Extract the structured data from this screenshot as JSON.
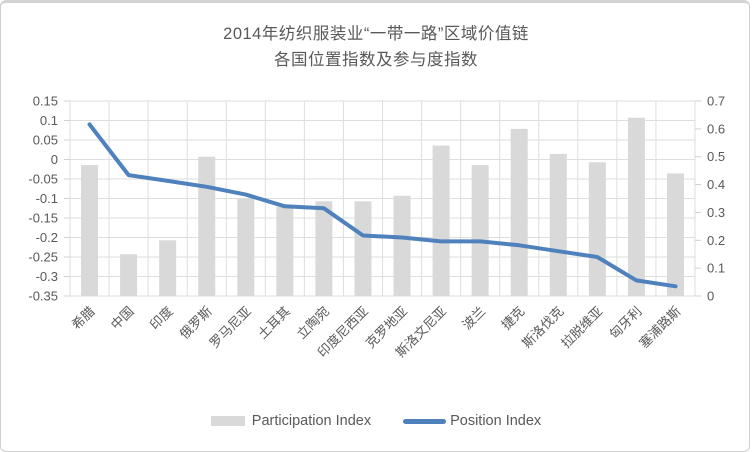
{
  "chart_data": {
    "type": "bar",
    "combo": "bar-and-line, dual axis",
    "title": "2014年纺织服装业“一带一路”区域价值链 各国位置指数及参与度指数",
    "title_line1": "2014年纺织服装业“一带一路”区域价值链",
    "title_line2": "各国位置指数及参与度指数",
    "categories": [
      "希腊",
      "中国",
      "印度",
      "俄罗斯",
      "罗马尼亚",
      "土耳其",
      "立陶宛",
      "印度尼西亚",
      "克罗地亚",
      "斯洛文尼亚",
      "波兰",
      "捷克",
      "斯洛伐克",
      "拉脱维亚",
      "匈牙利",
      "塞浦路斯"
    ],
    "series": [
      {
        "name": "Participation Index",
        "type": "bar",
        "axis": "right",
        "color": "#d9d9d9",
        "values": [
          0.47,
          0.15,
          0.2,
          0.5,
          0.35,
          0.32,
          0.34,
          0.34,
          0.36,
          0.54,
          0.47,
          0.6,
          0.51,
          0.48,
          0.64,
          0.44
        ]
      },
      {
        "name": "Position Index",
        "type": "line",
        "axis": "left",
        "color": "#4f81bd",
        "values": [
          0.09,
          -0.04,
          -0.055,
          -0.07,
          -0.09,
          -0.12,
          -0.125,
          -0.195,
          -0.2,
          -0.21,
          -0.21,
          -0.22,
          -0.235,
          -0.25,
          -0.31,
          -0.325
        ]
      }
    ],
    "left_axis": {
      "min": -0.35,
      "max": 0.15,
      "step": 0.05,
      "tick_labels": [
        "0.15",
        "0.1",
        "0.05",
        "0",
        "-0.05",
        "-0.1",
        "-0.15",
        "-0.2",
        "-0.25",
        "-0.3",
        "-0.35"
      ]
    },
    "right_axis": {
      "min": 0,
      "max": 0.7,
      "step": 0.1,
      "tick_labels": [
        "0.7",
        "0.6",
        "0.5",
        "0.4",
        "0.3",
        "0.2",
        "0.1",
        "0"
      ]
    },
    "grid": {
      "horizontal": true,
      "vertical": true,
      "color": "#dedede",
      "tick_color": "#d0d0d0"
    },
    "legend_position": "bottom",
    "text_color": "#595959"
  }
}
